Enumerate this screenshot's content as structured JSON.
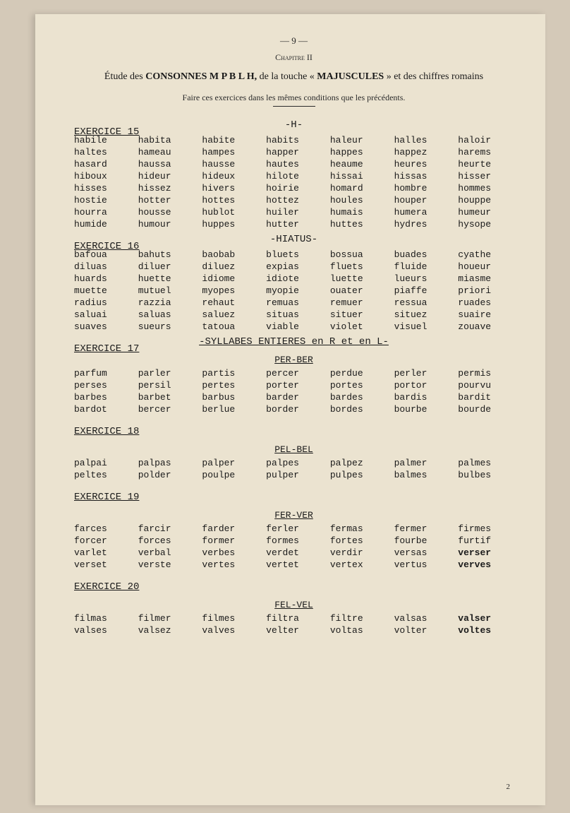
{
  "page_number": "— 9 —",
  "chapter_title": "Chapitre II",
  "main_heading_prefix": "Étude des ",
  "main_heading_bold1": "CONSONNES M P B L H,",
  "main_heading_mid": " de la touche « ",
  "main_heading_bold2": "MAJUSCULES",
  "main_heading_suffix": " » et des chiffres romains",
  "instruction": "Faire ces exercices dans les mêmes conditions que les précédents.",
  "footer_mark": "2",
  "exercises": {
    "ex15": {
      "label": "EXERCICE 15",
      "marker": "-H-",
      "rows": [
        [
          "habile",
          "habita",
          "habite",
          "habits",
          "haleur",
          "halles",
          "haloir"
        ],
        [
          "haltes",
          "hameau",
          "hampes",
          "happer",
          "happes",
          "happez",
          "harems"
        ],
        [
          "hasard",
          "haussa",
          "hausse",
          "hautes",
          "heaume",
          "heures",
          "heurte"
        ],
        [
          "hiboux",
          "hideur",
          "hideux",
          "hilote",
          "hissai",
          "hissas",
          "hisser"
        ],
        [
          "hisses",
          "hissez",
          "hivers",
          "hoirie",
          "homard",
          "hombre",
          "hommes"
        ],
        [
          "hostie",
          "hotter",
          "hottes",
          "hottez",
          "houles",
          "houper",
          "houppe"
        ],
        [
          "hourra",
          "housse",
          "hublot",
          "huiler",
          "humais",
          "humera",
          "humeur"
        ],
        [
          "humide",
          "humour",
          "huppes",
          "hutter",
          "huttes",
          "hydres",
          "hysope"
        ]
      ]
    },
    "ex16": {
      "label": "EXERCICE 16",
      "marker": "-HIATUS-",
      "rows": [
        [
          "bafoua",
          "bahuts",
          "baobab",
          "bluets",
          "bossua",
          "buades",
          "cyathe"
        ],
        [
          "diluas",
          "diluer",
          "diluez",
          "expias",
          "fluets",
          "fluide",
          "houeur"
        ],
        [
          "huards",
          "huette",
          "idiome",
          "idiote",
          "luette",
          "lueurs",
          "miasme"
        ],
        [
          "muette",
          "mutuel",
          "myopes",
          "myopie",
          "ouater",
          "piaffe",
          "priori"
        ],
        [
          "radius",
          "razzia",
          "rehaut",
          "remuas",
          "remuer",
          "ressua",
          "ruades"
        ],
        [
          "saluai",
          "saluas",
          "saluez",
          "situas",
          "situer",
          "situez",
          "suaire"
        ],
        [
          "suaves",
          "sueurs",
          "tatoua",
          "viable",
          "violet",
          "visuel",
          "zouave"
        ]
      ]
    },
    "ex17": {
      "label": "EXERCICE 17",
      "marker": "-SYLLABES ENTIERES en R et en L-",
      "sub": "PER-BER",
      "rows": [
        [
          "parfum",
          "parler",
          "partis",
          "percer",
          "perdue",
          "perler",
          "permis"
        ],
        [
          "perses",
          "persil",
          "pertes",
          "porter",
          "portes",
          "portor",
          "pourvu"
        ],
        [
          "barbes",
          "barbet",
          "barbus",
          "barder",
          "bardes",
          "bardis",
          "bardit"
        ],
        [
          "bardot",
          "bercer",
          "berlue",
          "border",
          "bordes",
          "bourbe",
          "bourde"
        ]
      ]
    },
    "ex18": {
      "label": "EXERCICE 18",
      "sub": "PEL-BEL",
      "rows": [
        [
          "palpai",
          "palpas",
          "palper",
          "palpes",
          "palpez",
          "palmer",
          "palmes"
        ],
        [
          "peltes",
          "polder",
          "poulpe",
          "pulper",
          "pulpes",
          "balmes",
          "bulbes"
        ]
      ]
    },
    "ex19": {
      "label": "EXERCICE 19",
      "sub": "FER-VER",
      "rows": [
        [
          "farces",
          "farcir",
          "farder",
          "ferler",
          "fermas",
          "fermer",
          "firmes"
        ],
        [
          "forcer",
          "forces",
          "former",
          "formes",
          "fortes",
          "fourbe",
          "furtif"
        ],
        [
          "varlet",
          "verbal",
          "verbes",
          "verdet",
          "verdir",
          "versas",
          "verser"
        ],
        [
          "verset",
          "verste",
          "vertes",
          "vertet",
          "vertex",
          "vertus",
          "verves"
        ]
      ]
    },
    "ex20": {
      "label": "EXERCICE 20",
      "sub": "FEL-VEL",
      "rows": [
        [
          "filmas",
          "filmer",
          "filmes",
          "filtra",
          "filtre",
          "valsas",
          "valser"
        ],
        [
          "valses",
          "valsez",
          "valves",
          "velter",
          "voltas",
          "volter",
          "voltes"
        ]
      ]
    }
  },
  "bold_cells": {
    "ex19": [
      [
        2,
        6
      ],
      [
        3,
        6
      ]
    ],
    "ex20": [
      [
        0,
        6
      ],
      [
        1,
        6
      ]
    ]
  },
  "colors": {
    "page_bg": "#ebe3d0",
    "outer_bg": "#d4c9b8",
    "text": "#1a1a1a"
  }
}
